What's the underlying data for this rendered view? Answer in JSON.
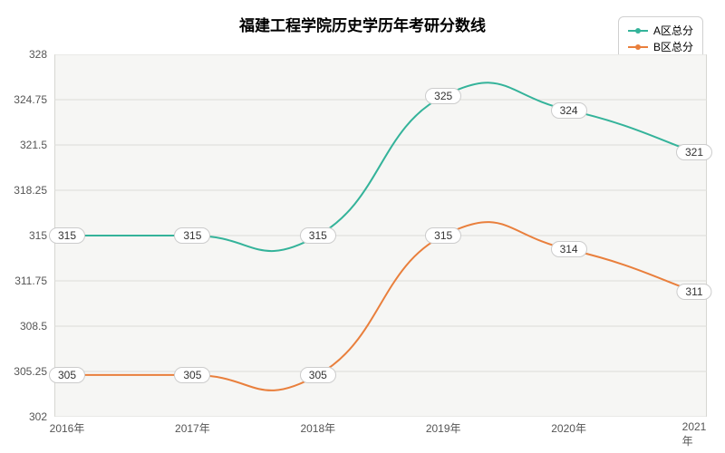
{
  "chart": {
    "type": "line",
    "title": "福建工程学院历史学历年考研分数线",
    "title_fontsize": 17,
    "background_color": "#ffffff",
    "plot_background_color": "#f6f6f4",
    "grid_color": "#dcdcd8",
    "axis_color": "#b8b8b0",
    "y_axis": {
      "min": 302,
      "max": 328,
      "ticks": [
        302,
        305.25,
        308.5,
        311.75,
        315,
        318.25,
        321.5,
        324.75,
        328
      ],
      "tick_labels": [
        "302",
        "305.25",
        "308.5",
        "311.75",
        "315",
        "318.25",
        "321.5",
        "324.75",
        "328"
      ],
      "label_fontsize": 12,
      "label_color": "#555555"
    },
    "x_axis": {
      "categories": [
        "2016年",
        "2017年",
        "2018年",
        "2019年",
        "2020年",
        "2021年"
      ],
      "label_fontsize": 12,
      "label_color": "#555555"
    },
    "series": [
      {
        "name": "A区总分",
        "color": "#34b39a",
        "line_width": 2,
        "marker_radius": 4,
        "values": [
          315,
          315,
          315,
          325,
          324,
          321
        ],
        "value_labels": [
          "315",
          "315",
          "315",
          "325",
          "324",
          "321"
        ],
        "smooth": true
      },
      {
        "name": "B区总分",
        "color": "#e97f3c",
        "line_width": 2,
        "marker_radius": 4,
        "values": [
          305,
          305,
          305,
          315,
          314,
          311
        ],
        "value_labels": [
          "305",
          "305",
          "305",
          "315",
          "314",
          "311"
        ],
        "smooth": true
      }
    ],
    "legend": {
      "position": "top-right",
      "border_color": "#d0d0d0",
      "fontsize": 12
    },
    "data_label_style": {
      "background": "#ffffff",
      "border_color": "#cccccc",
      "fontsize": 12,
      "border_radius": 10
    }
  }
}
